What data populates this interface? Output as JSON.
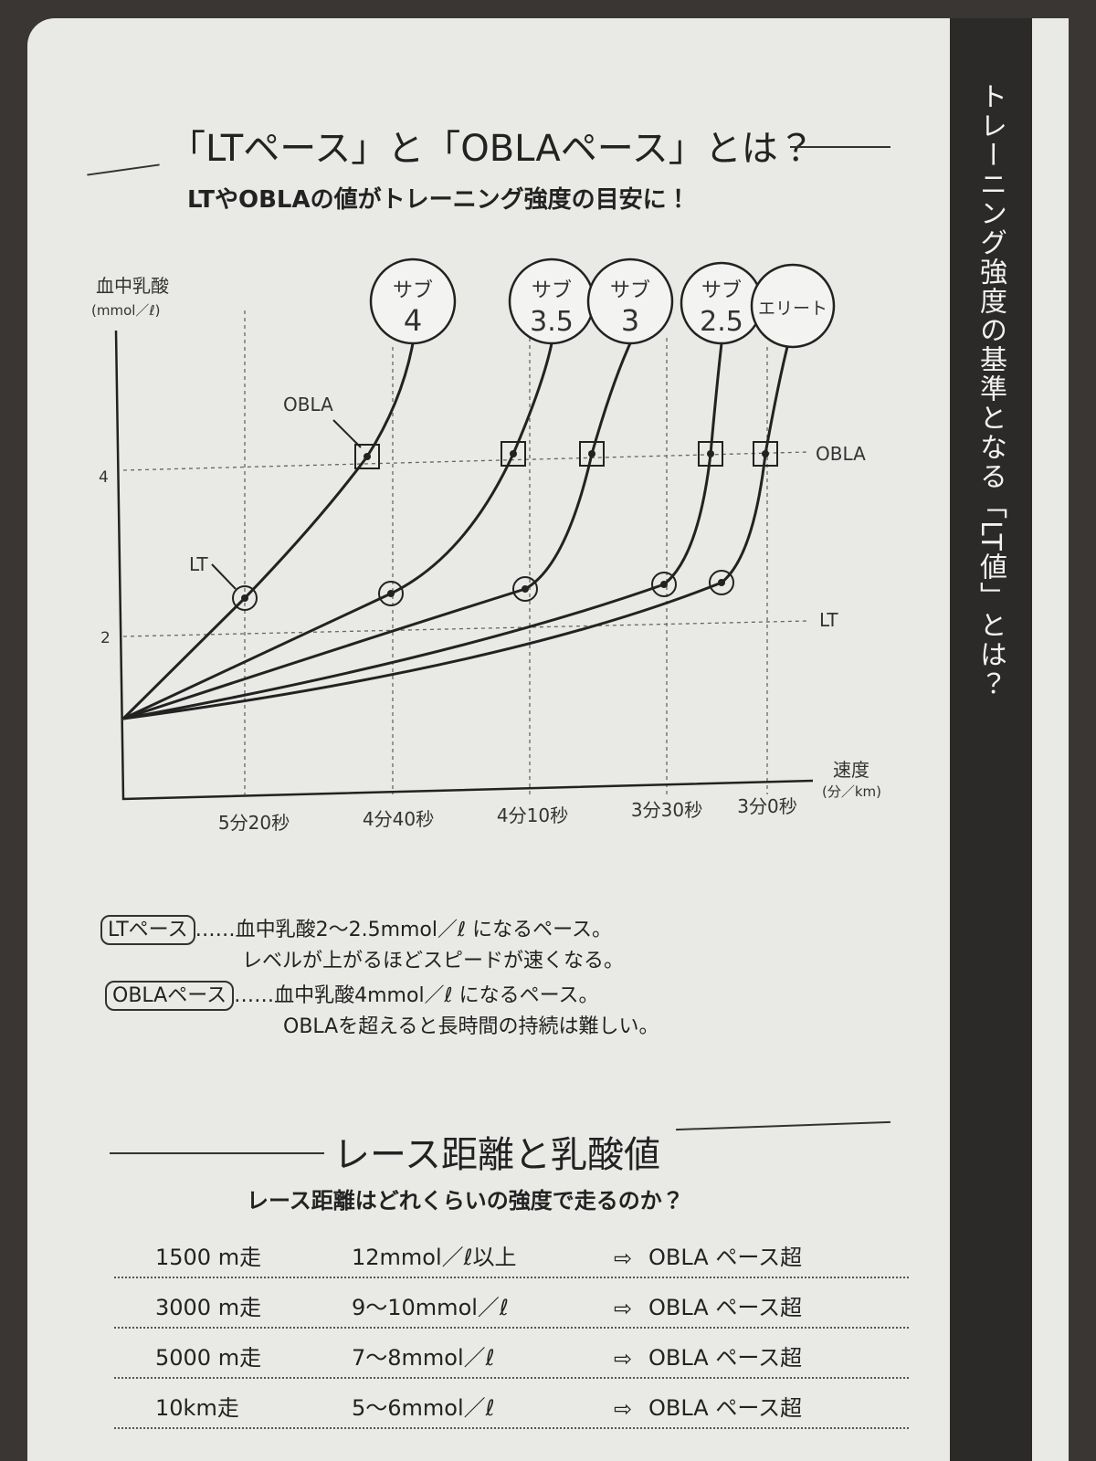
{
  "sidebar": "トレーニング強度の基準となる「LT値」とは？",
  "section1": {
    "title": "「LTペース」と「OBLAペース」とは？",
    "subtitle": "LTやOBLAの値がトレーニング強度の目安に！"
  },
  "diagram": {
    "y_label": "血中乳酸",
    "y_unit": "(mmol／ℓ)",
    "y_ticks": [
      "4",
      "2"
    ],
    "x_label": "速度",
    "x_unit": "(分／km)",
    "x_ticks": [
      "5分20秒",
      "4分40秒",
      "4分10秒",
      "3分30秒",
      "3分0秒"
    ],
    "levels": [
      {
        "line1": "サブ",
        "line2": "4"
      },
      {
        "line1": "サブ",
        "line2": "3.5"
      },
      {
        "line1": "サブ",
        "line2": "3"
      },
      {
        "line1": "サブ",
        "line2": "2.5"
      },
      {
        "line1": "エリート"
      }
    ],
    "obla_callout": "OBLA",
    "lt_callout": "LT",
    "obla_line": "OBLA",
    "lt_line": "LT"
  },
  "legend": [
    {
      "tag": "LTペース",
      "leader": "……",
      "lines": [
        "血中乳酸2〜2.5mmol／ℓ になるペース。",
        "レベルが上がるほどスピードが速くなる。"
      ]
    },
    {
      "tag": "OBLAペース",
      "leader": "……",
      "lines": [
        "血中乳酸4mmol／ℓ になるペース。",
        "OBLAを超えると長時間の持続は難しい。"
      ]
    }
  ],
  "section2": {
    "title": "レース距離と乳酸値",
    "subtitle": "レース距離はどれくらいの強度で走るのか？"
  },
  "table": {
    "rows": [
      [
        "1500 m走",
        "12mmol／ℓ以上",
        "OBLA ペース超"
      ],
      [
        "3000 m走",
        "9〜10mmol／ℓ",
        "OBLA ペース超"
      ],
      [
        "5000 m走",
        "7〜8mmol／ℓ",
        "OBLA ペース超"
      ],
      [
        "10km走",
        "5〜6mmol／ℓ",
        "OBLA ペース超"
      ]
    ]
  }
}
